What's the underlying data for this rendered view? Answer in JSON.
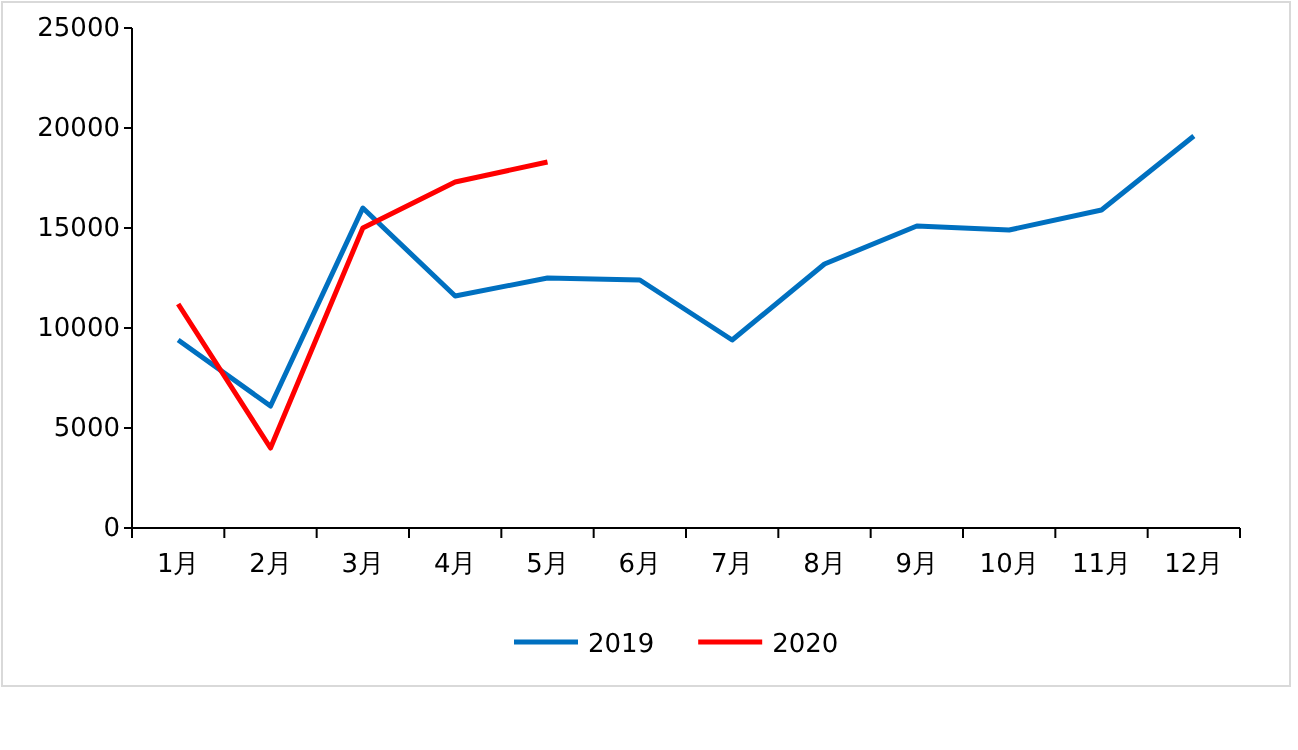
{
  "chart_data": {
    "type": "line",
    "categories": [
      "1月",
      "2月",
      "3月",
      "4月",
      "5月",
      "6月",
      "7月",
      "8月",
      "9月",
      "10月",
      "11月",
      "12月"
    ],
    "series": [
      {
        "name": "2019",
        "color": "#0070c0",
        "values": [
          9400,
          6100,
          16000,
          11600,
          12500,
          12400,
          9400,
          13200,
          15100,
          14900,
          15900,
          19600
        ]
      },
      {
        "name": "2020",
        "color": "#ff0000",
        "values": [
          11200,
          4000,
          15000,
          17300,
          18300,
          null,
          null,
          null,
          null,
          null,
          null,
          null
        ]
      }
    ],
    "ylim": [
      0,
      25000
    ],
    "yticks": [
      0,
      5000,
      10000,
      15000,
      20000,
      25000
    ],
    "grid": false,
    "legend": "bottom",
    "marker": "none",
    "line_style": "solid"
  }
}
